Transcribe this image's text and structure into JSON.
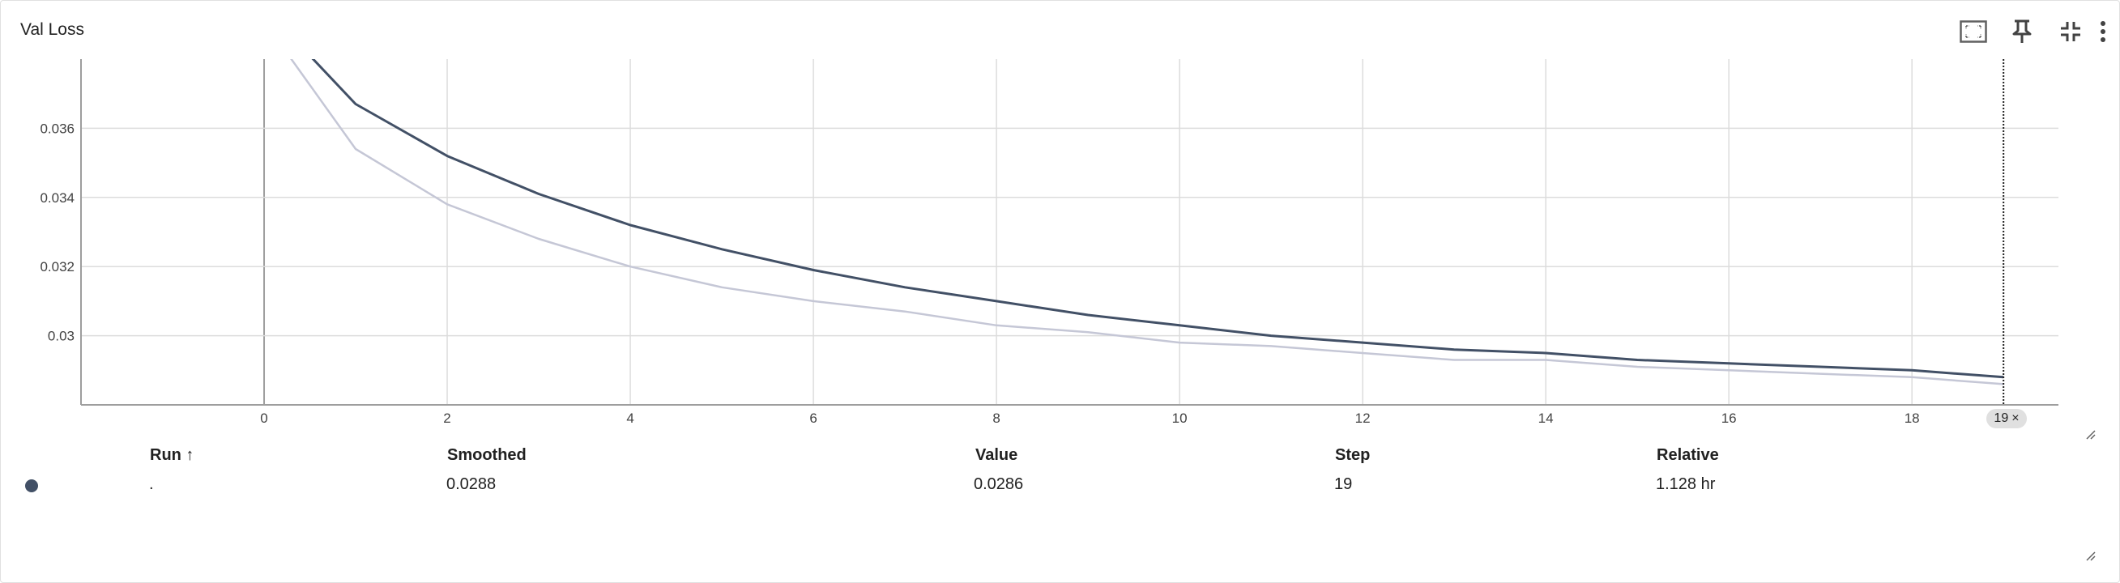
{
  "card": {
    "title": "Val Loss",
    "toolbar": [
      {
        "name": "fit-domain-icon"
      },
      {
        "name": "pin-icon"
      },
      {
        "name": "collapse-icon"
      },
      {
        "name": "more-vert-icon"
      }
    ]
  },
  "chart_data": {
    "type": "line",
    "title": "Val Loss",
    "xlabel": "",
    "ylabel": "",
    "xlim": [
      -2,
      19.6
    ],
    "ylim": [
      0.028,
      0.038
    ],
    "x_ticks": [
      0,
      2,
      4,
      6,
      8,
      10,
      12,
      14,
      16,
      18
    ],
    "y_ticks": [
      0.03,
      0.032,
      0.034,
      0.036
    ],
    "y_tick_labels": [
      "0.03",
      "0.032",
      "0.034",
      "0.036"
    ],
    "grid": true,
    "series": [
      {
        "role": "raw",
        "color": "#c5c7d6",
        "x": [
          0,
          1,
          2,
          3,
          4,
          5,
          6,
          7,
          8,
          9,
          10,
          11,
          12,
          13,
          14,
          15,
          16,
          17,
          18,
          19
        ],
        "values": [
          0.0391,
          0.0354,
          0.0338,
          0.0328,
          0.032,
          0.0314,
          0.031,
          0.0307,
          0.0303,
          0.0301,
          0.0298,
          0.0297,
          0.0295,
          0.0293,
          0.0293,
          0.0291,
          0.029,
          0.0289,
          0.0288,
          0.0286
        ]
      },
      {
        "role": "smoothed",
        "color": "#425066",
        "x": [
          0,
          1,
          2,
          3,
          4,
          5,
          6,
          7,
          8,
          9,
          10,
          11,
          12,
          13,
          14,
          15,
          16,
          17,
          18,
          19
        ],
        "values": [
          0.0395,
          0.0367,
          0.0352,
          0.0341,
          0.0332,
          0.0325,
          0.0319,
          0.0314,
          0.031,
          0.0306,
          0.0303,
          0.03,
          0.0298,
          0.0296,
          0.0295,
          0.0293,
          0.0292,
          0.0291,
          0.029,
          0.0288
        ]
      }
    ],
    "cursor_step": 19
  },
  "step_badge": {
    "label": "19",
    "close": "×"
  },
  "table": {
    "headers": {
      "run": "Run ↑",
      "smoothed": "Smoothed",
      "value": "Value",
      "step": "Step",
      "relative": "Relative"
    },
    "rows": [
      {
        "run": ".",
        "smoothed": "0.0288",
        "value": "0.0286",
        "step": "19",
        "relative": "1.128 hr",
        "color": "#425066"
      }
    ]
  }
}
